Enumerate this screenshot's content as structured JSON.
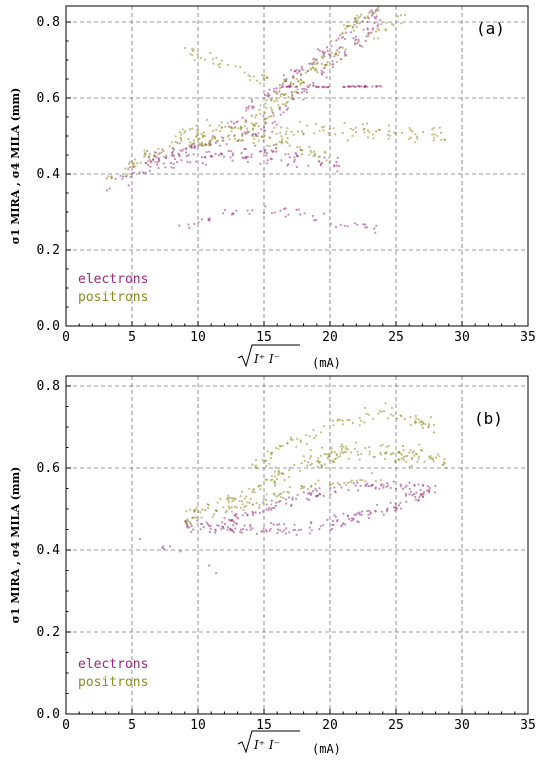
{
  "colors": {
    "electrons": "#9c2a7c",
    "positrons": "#8e8a1e"
  },
  "chart_data": [
    {
      "type": "scatter",
      "panel_label": "(a)",
      "xlabel": "√I⁺ I⁻  (mA)",
      "xlabel_sqrt": "I⁺ I⁻",
      "xlabel_unit": "(mA)",
      "ylabel": "σ1 MIRA , σ4 MILA  (mm)",
      "xlim": [
        0,
        35
      ],
      "ylim": [
        0,
        0.85
      ],
      "xticks": [
        "0",
        "5",
        "10",
        "15",
        "20",
        "25",
        "30",
        "35"
      ],
      "yticks": [
        "0.0",
        "0.2",
        "0.4",
        "0.6",
        "0.8"
      ],
      "grid": true,
      "legend_position": "bottom-left",
      "series": [
        {
          "name": "electrons",
          "color_key": "electrons",
          "bands": [
            {
              "x": [
                3,
                5,
                8,
                12,
                16,
                18,
                21
              ],
              "y": [
                0.37,
                0.4,
                0.44,
                0.45,
                0.45,
                0.44,
                0.42
              ],
              "spread": 0.035,
              "n": 130
            },
            {
              "x": [
                6,
                10,
                14,
                16,
                19,
                22,
                24
              ],
              "y": [
                0.44,
                0.47,
                0.5,
                0.55,
                0.65,
                0.75,
                0.8
              ],
              "spread": 0.035,
              "n": 130
            },
            {
              "x": [
                8,
                12,
                16,
                20,
                24
              ],
              "y": [
                0.26,
                0.29,
                0.31,
                0.28,
                0.25
              ],
              "spread": 0.02,
              "n": 50
            },
            {
              "x": [
                16,
                24
              ],
              "y": [
                0.63,
                0.63
              ],
              "spread": 0.003,
              "n": 50
            },
            {
              "x": [
                12,
                15,
                18,
                21,
                24
              ],
              "y": [
                0.52,
                0.6,
                0.68,
                0.76,
                0.84
              ],
              "spread": 0.03,
              "n": 90
            }
          ]
        },
        {
          "name": "positrons",
          "color_key": "positrons",
          "bands": [
            {
              "x": [
                3,
                6,
                10,
                14,
                18,
                22,
                26,
                29
              ],
              "y": [
                0.38,
                0.44,
                0.49,
                0.5,
                0.51,
                0.51,
                0.51,
                0.5
              ],
              "spread": 0.035,
              "n": 160
            },
            {
              "x": [
                10,
                14,
                17,
                19,
                22,
                24
              ],
              "y": [
                0.48,
                0.52,
                0.6,
                0.7,
                0.8,
                0.85
              ],
              "spread": 0.03,
              "n": 120
            },
            {
              "x": [
                14,
                18,
                22,
                26
              ],
              "y": [
                0.55,
                0.66,
                0.74,
                0.82
              ],
              "spread": 0.03,
              "n": 80
            },
            {
              "x": [
                9,
                11,
                14,
                17
              ],
              "y": [
                0.72,
                0.7,
                0.66,
                0.64
              ],
              "spread": 0.025,
              "n": 40
            },
            {
              "x": [
                8,
                12,
                16,
                20
              ],
              "y": [
                0.5,
                0.53,
                0.48,
                0.44
              ],
              "spread": 0.03,
              "n": 70
            }
          ]
        }
      ]
    },
    {
      "type": "scatter",
      "panel_label": "(b)",
      "xlabel": "√I⁺ I⁻  (mA)",
      "xlabel_sqrt": "I⁺ I⁻",
      "xlabel_unit": "(mA)",
      "ylabel": "σ1 MIRA , σ4 MILA  (mm)",
      "xlim": [
        0,
        35
      ],
      "ylim": [
        0,
        0.85
      ],
      "xticks": [
        "0",
        "5",
        "10",
        "15",
        "20",
        "25",
        "30",
        "35"
      ],
      "yticks": [
        "0.0",
        "0.2",
        "0.4",
        "0.6",
        "0.8"
      ],
      "grid": true,
      "legend_position": "bottom-left",
      "series": [
        {
          "name": "electrons",
          "color_key": "electrons",
          "bands": [
            {
              "x": [
                9,
                12,
                15,
                18,
                21,
                24,
                28
              ],
              "y": [
                0.46,
                0.46,
                0.45,
                0.45,
                0.47,
                0.5,
                0.55
              ],
              "spread": 0.025,
              "n": 170
            },
            {
              "x": [
                12,
                15,
                18,
                21,
                25,
                28
              ],
              "y": [
                0.47,
                0.5,
                0.53,
                0.55,
                0.56,
                0.55
              ],
              "spread": 0.02,
              "n": 110
            },
            {
              "x": [
                5.5,
                6,
                10.5,
                11,
                11.5
              ],
              "y": [
                0.43,
                0.42,
                0.38,
                0.36,
                0.34
              ],
              "spread": 0.01,
              "n": 8
            }
          ]
        },
        {
          "name": "positrons",
          "color_key": "positrons",
          "bands": [
            {
              "x": [
                9,
                12,
                15,
                18,
                21,
                24,
                27,
                29
              ],
              "y": [
                0.48,
                0.51,
                0.56,
                0.61,
                0.64,
                0.64,
                0.63,
                0.61
              ],
              "spread": 0.035,
              "n": 220
            },
            {
              "x": [
                14,
                17,
                20,
                24,
                28
              ],
              "y": [
                0.6,
                0.66,
                0.7,
                0.74,
                0.7
              ],
              "spread": 0.025,
              "n": 90
            },
            {
              "x": [
                12,
                15,
                18,
                21,
                24
              ],
              "y": [
                0.49,
                0.52,
                0.55,
                0.57,
                0.58
              ],
              "spread": 0.02,
              "n": 60
            }
          ]
        }
      ]
    }
  ]
}
